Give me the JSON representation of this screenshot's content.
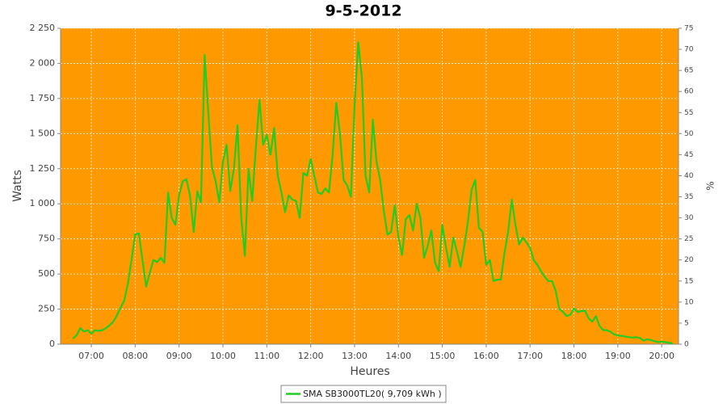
{
  "chart_data": {
    "type": "line",
    "title": "9-5-2012",
    "xlabel": "Heures",
    "ylabel": "Watts",
    "y2label": "%",
    "x": [
      "06:35",
      "06:40",
      "06:45",
      "06:50",
      "06:55",
      "07:00",
      "07:05",
      "07:10",
      "07:15",
      "07:20",
      "07:25",
      "07:30",
      "07:35",
      "07:40",
      "07:45",
      "07:50",
      "07:55",
      "08:00",
      "08:05",
      "08:10",
      "08:15",
      "08:20",
      "08:25",
      "08:30",
      "08:35",
      "08:40",
      "08:45",
      "08:50",
      "08:55",
      "09:00",
      "09:05",
      "09:10",
      "09:15",
      "09:20",
      "09:25",
      "09:30",
      "09:35",
      "09:40",
      "09:45",
      "09:50",
      "09:55",
      "10:00",
      "10:05",
      "10:10",
      "10:15",
      "10:20",
      "10:25",
      "10:30",
      "10:35",
      "10:40",
      "10:45",
      "10:50",
      "10:55",
      "11:00",
      "11:05",
      "11:10",
      "11:15",
      "11:20",
      "11:25",
      "11:30",
      "11:35",
      "11:40",
      "11:45",
      "11:50",
      "11:55",
      "12:00",
      "12:05",
      "12:10",
      "12:15",
      "12:20",
      "12:25",
      "12:30",
      "12:35",
      "12:40",
      "12:45",
      "12:50",
      "12:55",
      "13:00",
      "13:05",
      "13:10",
      "13:15",
      "13:20",
      "13:25",
      "13:30",
      "13:35",
      "13:40",
      "13:45",
      "13:50",
      "13:55",
      "14:00",
      "14:05",
      "14:10",
      "14:15",
      "14:20",
      "14:25",
      "14:30",
      "14:35",
      "14:40",
      "14:45",
      "14:50",
      "14:55",
      "15:00",
      "15:05",
      "15:10",
      "15:15",
      "15:20",
      "15:25",
      "15:30",
      "15:35",
      "15:40",
      "15:45",
      "15:50",
      "15:55",
      "16:00",
      "16:05",
      "16:10",
      "16:15",
      "16:20",
      "16:25",
      "16:30",
      "16:35",
      "16:40",
      "16:45",
      "16:50",
      "16:55",
      "17:00",
      "17:05",
      "17:10",
      "17:15",
      "17:20",
      "17:25",
      "17:30",
      "17:35",
      "17:40",
      "17:45",
      "17:50",
      "17:55",
      "18:00",
      "18:05",
      "18:10",
      "18:15",
      "18:20",
      "18:25",
      "18:30",
      "18:35",
      "18:40",
      "18:45",
      "18:50",
      "18:55",
      "19:00",
      "19:05",
      "19:10",
      "19:15",
      "19:20",
      "19:25",
      "19:30",
      "19:35",
      "19:40",
      "19:45",
      "19:50",
      "19:55",
      "20:00",
      "20:05",
      "20:10",
      "20:15"
    ],
    "series": [
      {
        "name": "SMA SB3000TL20( 9,709 kWh )",
        "color": "#22cc22",
        "values": [
          40,
          65,
          115,
          90,
          100,
          75,
          100,
          95,
          100,
          115,
          135,
          160,
          205,
          260,
          310,
          430,
          600,
          780,
          790,
          600,
          410,
          510,
          600,
          585,
          615,
          580,
          1080,
          900,
          850,
          1060,
          1160,
          1175,
          1060,
          800,
          1090,
          1010,
          2060,
          1650,
          1260,
          1160,
          1010,
          1300,
          1420,
          1090,
          1250,
          1560,
          900,
          630,
          1250,
          1020,
          1400,
          1740,
          1420,
          1490,
          1350,
          1540,
          1200,
          1080,
          940,
          1060,
          1030,
          1020,
          900,
          1220,
          1200,
          1320,
          1200,
          1080,
          1070,
          1110,
          1080,
          1350,
          1720,
          1500,
          1170,
          1130,
          1050,
          1700,
          2150,
          1900,
          1200,
          1080,
          1600,
          1300,
          1170,
          950,
          780,
          800,
          990,
          760,
          635,
          890,
          920,
          810,
          1000,
          900,
          615,
          700,
          810,
          580,
          520,
          850,
          690,
          550,
          760,
          660,
          550,
          700,
          870,
          1100,
          1170,
          830,
          800,
          565,
          600,
          450,
          460,
          460,
          650,
          800,
          1030,
          850,
          710,
          760,
          725,
          685,
          600,
          565,
          520,
          480,
          450,
          450,
          380,
          250,
          230,
          200,
          210,
          255,
          230,
          235,
          240,
          185,
          160,
          200,
          130,
          100,
          100,
          88,
          70,
          62,
          60,
          55,
          50,
          47,
          50,
          45,
          25,
          35,
          30,
          22,
          15,
          18,
          15,
          10,
          5
        ]
      }
    ],
    "xlim": [
      "06:18",
      "20:23"
    ],
    "xticks": [
      "07:00",
      "08:00",
      "09:00",
      "10:00",
      "11:00",
      "12:00",
      "13:00",
      "14:00",
      "15:00",
      "16:00",
      "17:00",
      "18:00",
      "19:00",
      "20:00"
    ],
    "ylim": [
      0,
      2250
    ],
    "yticks": [
      0,
      250,
      500,
      750,
      {
        "value": 1000,
        "label": "1 000"
      },
      {
        "value": 1250,
        "label": "1 250"
      },
      {
        "value": 1500,
        "label": "1 500"
      },
      {
        "value": 1750,
        "label": "1 750"
      },
      {
        "value": 2000,
        "label": "2 000"
      },
      {
        "value": 2250,
        "label": "2 250"
      }
    ],
    "y2lim": [
      0,
      75
    ],
    "y2ticks": [
      0,
      5,
      10,
      15,
      20,
      25,
      30,
      35,
      40,
      45,
      50,
      55,
      60,
      65,
      70,
      75
    ],
    "grid": true,
    "plot_background": "#ff9900",
    "legend": "bottom"
  }
}
